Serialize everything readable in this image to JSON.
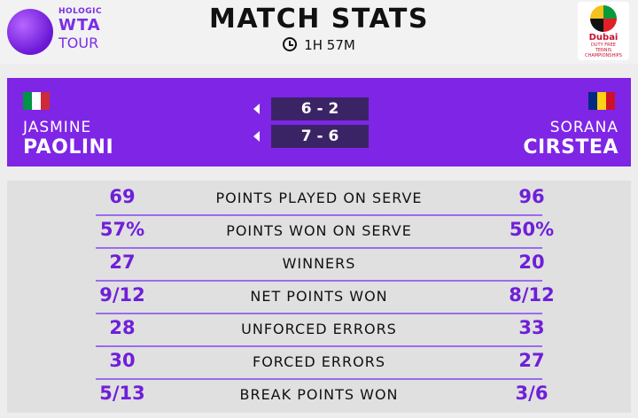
{
  "header": {
    "logo_left": {
      "line1": "HOLOGIC",
      "line2": "WTA",
      "line3": "TOUR"
    },
    "title": "MATCH STATS",
    "duration": "1H 57M",
    "logo_right": {
      "line1": "Dubai",
      "line2": "DUTY FREE",
      "line3": "TENNIS",
      "line4": "CHAMPIONSHIPS"
    }
  },
  "players": {
    "left": {
      "first": "JASMINE",
      "last": "PAOLINI",
      "flag": [
        "#009246",
        "#ffffff",
        "#ce2b37"
      ]
    },
    "right": {
      "first": "SORANA",
      "last": "CIRSTEA",
      "flag": [
        "#002b7f",
        "#fcd116",
        "#ce1126"
      ]
    }
  },
  "scores": [
    "6 - 2",
    "7 - 6"
  ],
  "stats": [
    {
      "left": "69",
      "label": "POINTS PLAYED ON SERVE",
      "right": "96"
    },
    {
      "left": "57%",
      "label": "POINTS WON ON SERVE",
      "right": "50%"
    },
    {
      "left": "27",
      "label": "WINNERS",
      "right": "20"
    },
    {
      "left": "9/12",
      "label": "NET POINTS WON",
      "right": "8/12"
    },
    {
      "left": "28",
      "label": "UNFORCED ERRORS",
      "right": "33"
    },
    {
      "left": "30",
      "label": "FORCED ERRORS",
      "right": "27"
    },
    {
      "left": "5/13",
      "label": "BREAK POINTS WON",
      "right": "3/6"
    }
  ]
}
